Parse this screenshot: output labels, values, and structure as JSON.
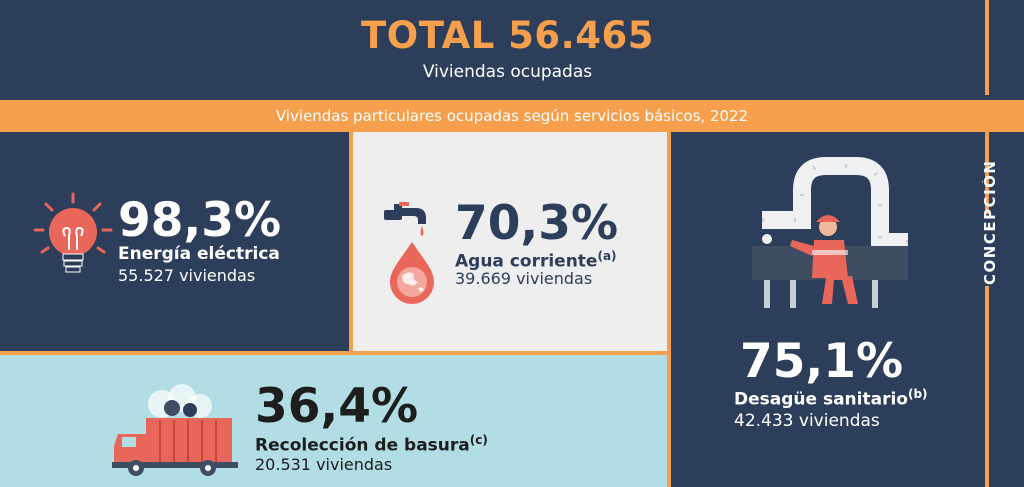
{
  "header": {
    "total": "TOTAL 56.465",
    "subtitle": "Viviendas ocupadas"
  },
  "band": {
    "title": "Viviendas particulares ocupadas según servicios básicos, 2022"
  },
  "side_label": "CONCEPCIÓN",
  "energy": {
    "percent": "98,3%",
    "label": "Energía eléctrica",
    "count": "55.527 viviendas",
    "icon": "lightbulb-icon"
  },
  "water": {
    "percent": "70,3%",
    "label": "Agua corriente",
    "note": "(a)",
    "count": "39.669 viviendas",
    "icon": "water-tap-icon"
  },
  "sewer": {
    "percent": "75,1%",
    "label": "Desagüe sanitario",
    "note": "(b)",
    "count": "42.433 viviendas",
    "icon": "plumber-pipes-icon"
  },
  "garbage": {
    "percent": "36,4%",
    "label": "Recolección de basura",
    "note": "(c)",
    "count": "20.531 viviendas",
    "icon": "garbage-truck-icon"
  },
  "colors": {
    "navy": "#2c3e5a",
    "orange": "#f6a04d",
    "light_gray": "#eeeeee",
    "light_blue": "#b3dde4",
    "coral": "#e8665a"
  }
}
